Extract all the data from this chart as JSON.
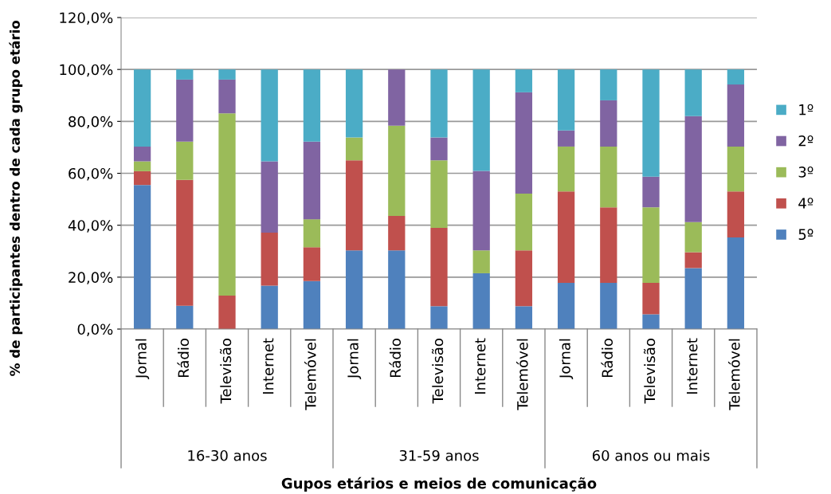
{
  "chart_data": {
    "type": "bar",
    "stacked": true,
    "xlabel": "Gupos etários e meios de comunicação",
    "ylabel": "% de participantes dentro de cada grupo etário",
    "categories": [
      "Jornal",
      "Rádio",
      "Televisão",
      "Internet",
      "Telemóvel",
      "Jornal",
      "Rádio",
      "Televisão",
      "Internet",
      "Telemóvel",
      "Jornal",
      "Rádio",
      "Televisão",
      "Internet",
      "Telemóvel"
    ],
    "annotations": [
      "16-30 anos",
      "31-59 anos",
      "60 anos ou mais"
    ],
    "series": [
      {
        "name": "5º",
        "color": "#4f81bd",
        "values": [
          55.5,
          9.0,
          0,
          16.7,
          18.5,
          30.3,
          30.3,
          8.8,
          21.5,
          8.8,
          17.8,
          17.8,
          5.7,
          23.5,
          35.3
        ]
      },
      {
        "name": "4º",
        "color": "#c0504d",
        "values": [
          5.3,
          48.5,
          12.9,
          20.4,
          13.0,
          34.7,
          13.3,
          30.2,
          0,
          21.5,
          35.2,
          29.1,
          12.1,
          6.1,
          17.7
        ]
      },
      {
        "name": "3º",
        "color": "#9bbb59",
        "values": [
          3.8,
          14.7,
          70.2,
          0,
          10.8,
          8.8,
          34.7,
          26.0,
          8.8,
          21.9,
          17.3,
          23.4,
          29.1,
          11.6,
          17.3
        ]
      },
      {
        "name": "2º",
        "color": "#8064a2",
        "values": [
          5.7,
          23.9,
          13.0,
          27.5,
          29.9,
          0,
          21.7,
          8.8,
          30.6,
          39.0,
          6.2,
          17.8,
          11.8,
          40.8,
          23.9
        ]
      },
      {
        "name": "1º",
        "color": "#4bacc6",
        "values": [
          29.7,
          3.9,
          3.9,
          35.4,
          27.8,
          26.2,
          0,
          26.2,
          39.1,
          8.8,
          23.5,
          11.9,
          41.3,
          18.0,
          5.8
        ]
      }
    ],
    "ylim": [
      0,
      120
    ],
    "yticks": [
      {
        "value": 0,
        "label": "0,0%"
      },
      {
        "value": 20,
        "label": "20,0%"
      },
      {
        "value": 40,
        "label": "40,0%"
      },
      {
        "value": 60,
        "label": "60,0%"
      },
      {
        "value": 80,
        "label": "80,0%"
      },
      {
        "value": 100,
        "label": "100,0%"
      },
      {
        "value": 120,
        "label": "120,0%"
      }
    ],
    "grid": "y",
    "legend": "right"
  }
}
